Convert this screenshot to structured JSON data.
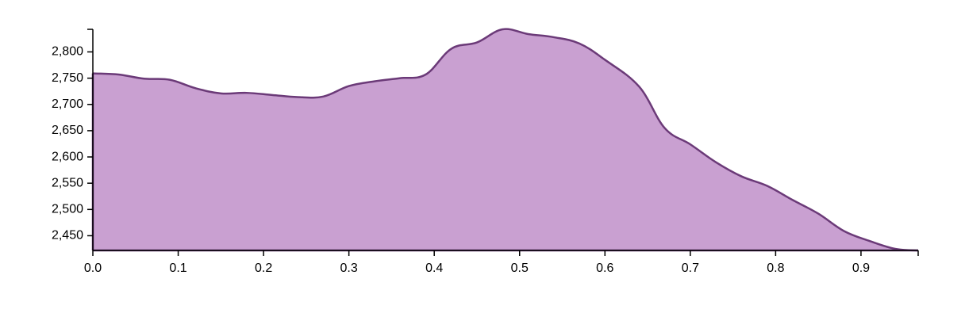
{
  "chart_data": {
    "type": "area",
    "title": "",
    "xlabel": "",
    "ylabel": "",
    "xlim": [
      0,
      0.967
    ],
    "ylim": [
      2422,
      2843
    ],
    "grid": false,
    "colors": {
      "fill": "#c9a0d1",
      "stroke": "#6b3a78",
      "axis": "#000000"
    },
    "x_ticks": [
      {
        "value": 0.0,
        "label": "0.0"
      },
      {
        "value": 0.1,
        "label": "0.1"
      },
      {
        "value": 0.2,
        "label": "0.2"
      },
      {
        "value": 0.3,
        "label": "0.3"
      },
      {
        "value": 0.4,
        "label": "0.4"
      },
      {
        "value": 0.5,
        "label": "0.5"
      },
      {
        "value": 0.6,
        "label": "0.6"
      },
      {
        "value": 0.7,
        "label": "0.7"
      },
      {
        "value": 0.8,
        "label": "0.8"
      },
      {
        "value": 0.9,
        "label": "0.9"
      }
    ],
    "y_ticks": [
      {
        "value": 2450,
        "label": "2,450"
      },
      {
        "value": 2500,
        "label": "2,500"
      },
      {
        "value": 2550,
        "label": "2,550"
      },
      {
        "value": 2600,
        "label": "2,600"
      },
      {
        "value": 2650,
        "label": "2,650"
      },
      {
        "value": 2700,
        "label": "2,700"
      },
      {
        "value": 2750,
        "label": "2,750"
      },
      {
        "value": 2800,
        "label": "2,800"
      }
    ],
    "x": [
      0.0,
      0.03,
      0.06,
      0.09,
      0.12,
      0.15,
      0.18,
      0.21,
      0.24,
      0.27,
      0.3,
      0.33,
      0.36,
      0.39,
      0.42,
      0.45,
      0.48,
      0.51,
      0.54,
      0.57,
      0.6,
      0.64,
      0.67,
      0.7,
      0.73,
      0.76,
      0.79,
      0.82,
      0.85,
      0.88,
      0.91,
      0.94,
      0.967
    ],
    "y": [
      2759,
      2757,
      2749,
      2747,
      2731,
      2721,
      2722,
      2718,
      2714,
      2715,
      2735,
      2744,
      2750,
      2757,
      2806,
      2818,
      2843,
      2834,
      2828,
      2816,
      2785,
      2734,
      2655,
      2624,
      2590,
      2563,
      2545,
      2518,
      2492,
      2459,
      2440,
      2425,
      2422
    ]
  }
}
